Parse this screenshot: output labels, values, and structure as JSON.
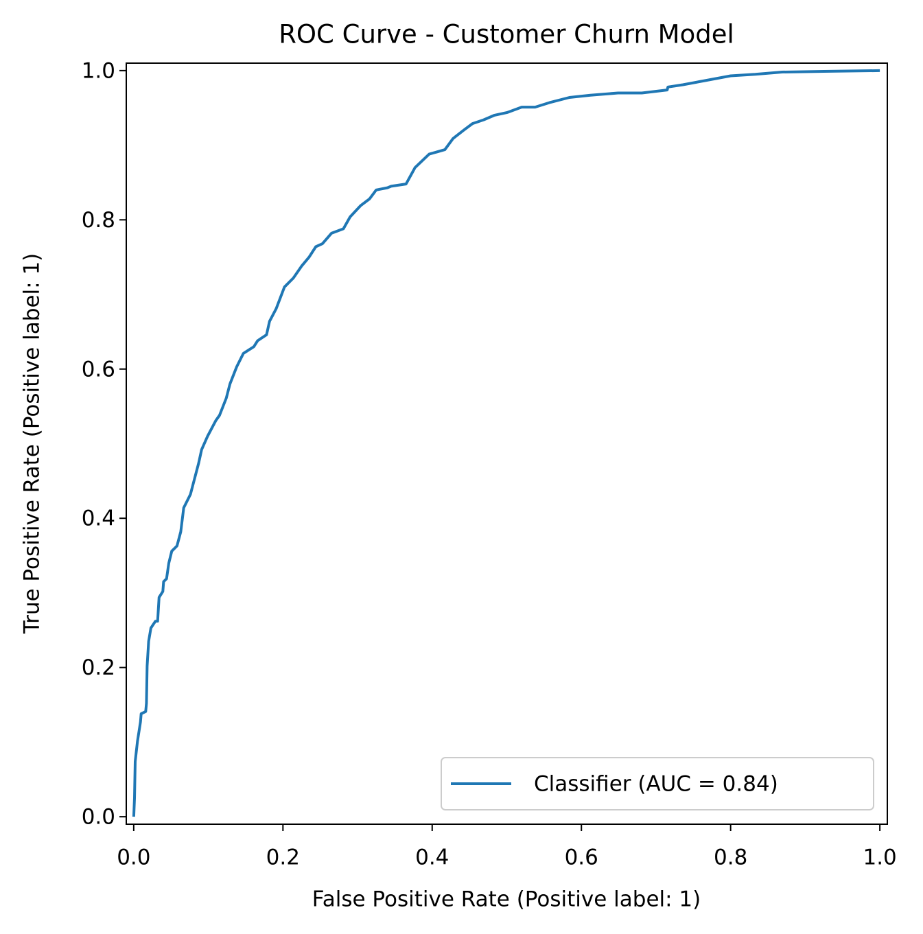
{
  "chart_data": {
    "type": "line",
    "title": "ROC Curve - Customer Churn Model",
    "xlabel": "False Positive Rate (Positive label: 1)",
    "ylabel": "True Positive Rate (Positive label: 1)",
    "x": [
      0,
      0.001,
      0.002,
      0.005,
      0.009,
      0.01,
      0.016,
      0.017,
      0.018,
      0.02,
      0.023,
      0.029,
      0.032,
      0.034,
      0.039,
      0.04,
      0.044,
      0.047,
      0.051,
      0.058,
      0.063,
      0.067,
      0.076,
      0.087,
      0.091,
      0.099,
      0.11,
      0.115,
      0.124,
      0.129,
      0.138,
      0.147,
      0.161,
      0.166,
      0.178,
      0.182,
      0.191,
      0.202,
      0.214,
      0.225,
      0.235,
      0.244,
      0.253,
      0.265,
      0.281,
      0.29,
      0.304,
      0.316,
      0.325,
      0.34,
      0.345,
      0.365,
      0.377,
      0.396,
      0.417,
      0.428,
      0.442,
      0.454,
      0.469,
      0.483,
      0.501,
      0.52,
      0.538,
      0.557,
      0.584,
      0.612,
      0.649,
      0.681,
      0.715,
      0.716,
      0.736,
      0.768,
      0.8,
      0.833,
      0.869,
      0.925,
      1.0
    ],
    "series": [
      {
        "name": "Classifier (AUC = 0.84)",
        "color": "#1f77b4",
        "values": [
          0,
          0.025,
          0.074,
          0.101,
          0.127,
          0.138,
          0.141,
          0.152,
          0.202,
          0.235,
          0.253,
          0.262,
          0.262,
          0.294,
          0.302,
          0.315,
          0.319,
          0.34,
          0.356,
          0.363,
          0.382,
          0.414,
          0.432,
          0.474,
          0.492,
          0.51,
          0.531,
          0.538,
          0.561,
          0.58,
          0.603,
          0.621,
          0.63,
          0.638,
          0.646,
          0.664,
          0.681,
          0.71,
          0.722,
          0.738,
          0.75,
          0.764,
          0.768,
          0.782,
          0.788,
          0.804,
          0.819,
          0.828,
          0.84,
          0.843,
          0.845,
          0.848,
          0.87,
          0.888,
          0.894,
          0.909,
          0.92,
          0.929,
          0.934,
          0.94,
          0.944,
          0.951,
          0.951,
          0.957,
          0.964,
          0.967,
          0.97,
          0.97,
          0.974,
          0.978,
          0.981,
          0.987,
          0.993,
          0.995,
          0.998,
          0.999,
          1.0
        ]
      }
    ],
    "xlim": [
      -0.01,
      1.01
    ],
    "ylim": [
      -0.01,
      1.01
    ],
    "xticks": [
      {
        "value": 0,
        "label": "0.0"
      },
      0.2,
      0.4,
      0.6,
      0.8,
      {
        "value": 1,
        "label": "1.0"
      }
    ],
    "yticks": [
      {
        "value": 0,
        "label": "0.0"
      },
      0.2,
      0.4,
      0.6,
      0.8,
      {
        "value": 1,
        "label": "1.0"
      }
    ],
    "legend": "lower right"
  }
}
